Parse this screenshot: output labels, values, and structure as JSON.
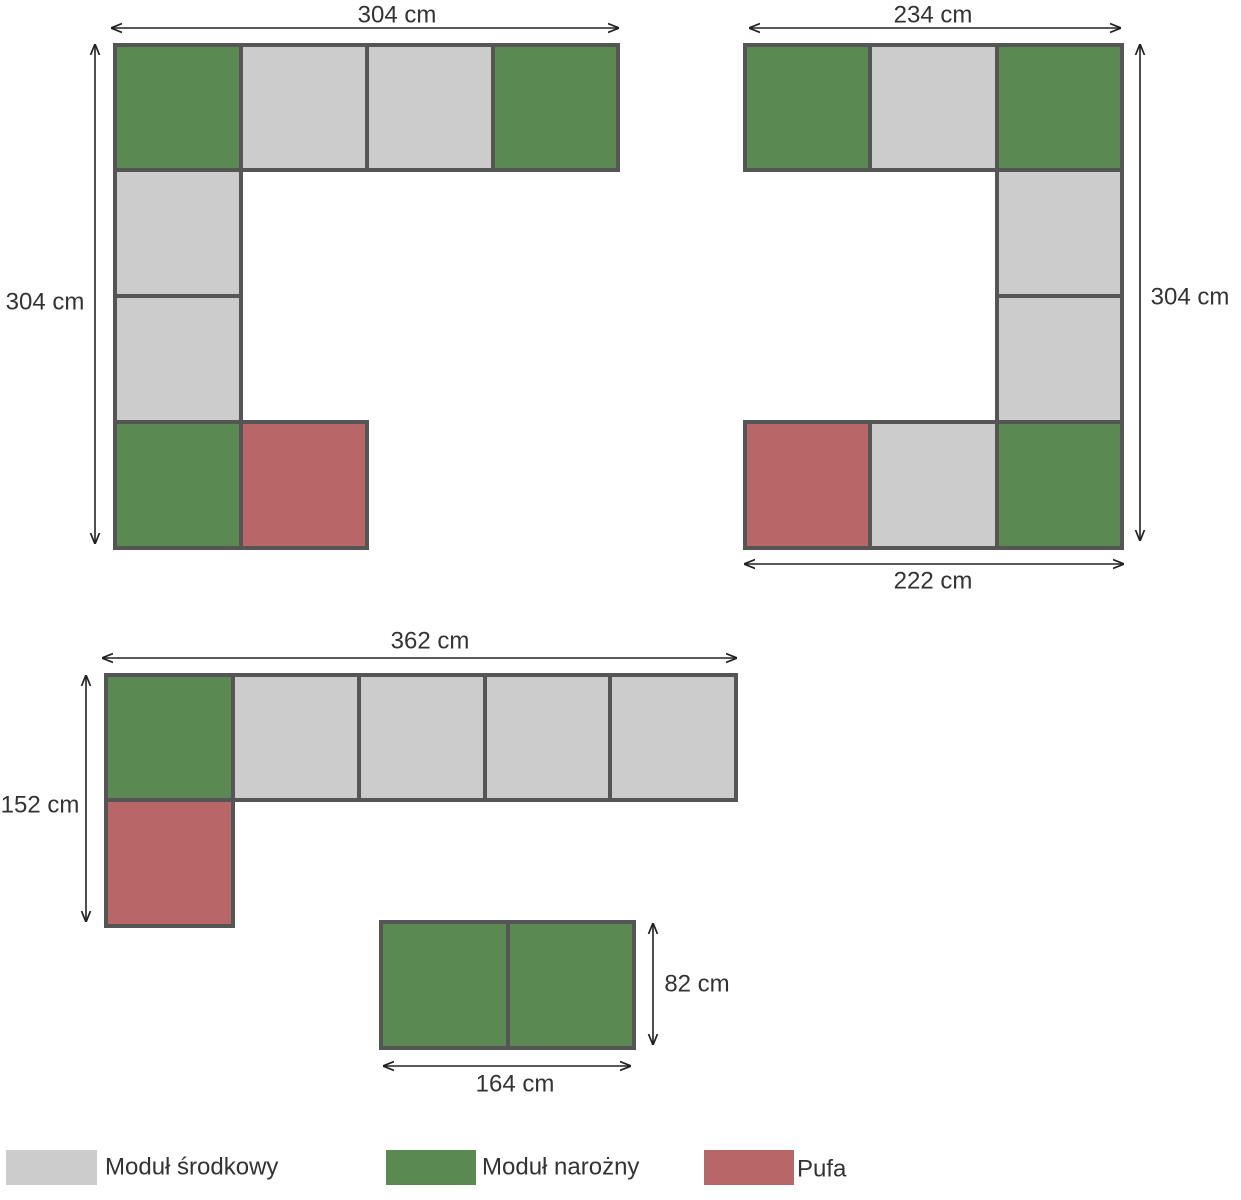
{
  "layouts": [
    {
      "dimensions": [
        "304 cm",
        "304 cm"
      ]
    },
    {
      "dimensions": [
        "234 cm",
        "304 cm",
        "222 cm"
      ]
    },
    {
      "dimensions": [
        "362 cm",
        "152 cm"
      ]
    },
    {
      "dimensions": [
        "82 cm",
        "164 cm"
      ]
    }
  ],
  "legend": [
    {
      "label": "Moduł środkowy"
    },
    {
      "label": "Moduł narożny"
    },
    {
      "label": "Pufa"
    }
  ]
}
